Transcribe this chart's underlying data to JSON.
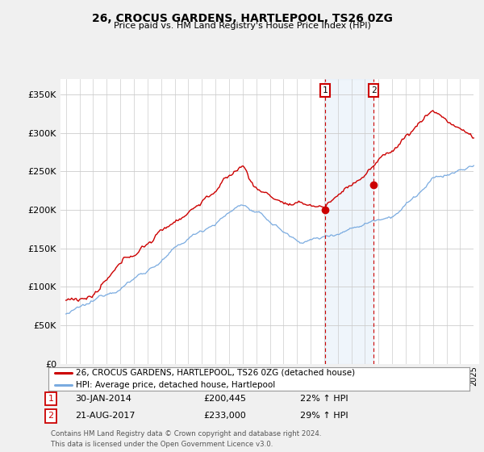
{
  "title": "26, CROCUS GARDENS, HARTLEPOOL, TS26 0ZG",
  "subtitle": "Price paid vs. HM Land Registry's House Price Index (HPI)",
  "legend_line1": "26, CROCUS GARDENS, HARTLEPOOL, TS26 0ZG (detached house)",
  "legend_line2": "HPI: Average price, detached house, Hartlepool",
  "annotation1_date": "30-JAN-2014",
  "annotation1_price": "£200,445",
  "annotation1_hpi": "22% ↑ HPI",
  "annotation1_year": 2014.08,
  "annotation1_value": 200445,
  "annotation2_date": "21-AUG-2017",
  "annotation2_price": "£233,000",
  "annotation2_hpi": "29% ↑ HPI",
  "annotation2_year": 2017.64,
  "annotation2_value": 233000,
  "price_color": "#cc0000",
  "hpi_color": "#7aabe0",
  "background_color": "#f0f0f0",
  "plot_bg_color": "#ffffff",
  "footer": "Contains HM Land Registry data © Crown copyright and database right 2024.\nThis data is licensed under the Open Government Licence v3.0.",
  "ylim": [
    0,
    370000
  ],
  "yticks": [
    0,
    50000,
    100000,
    150000,
    200000,
    250000,
    300000,
    350000
  ],
  "xlim_left": 1994.6,
  "xlim_right": 2025.4
}
